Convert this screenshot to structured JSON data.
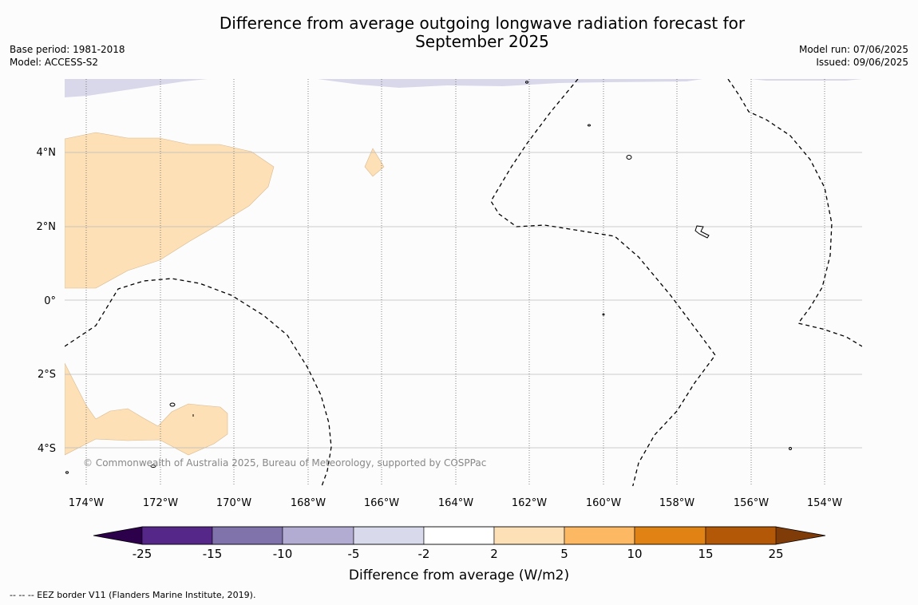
{
  "title_line1": "Difference from average outgoing longwave radiation forecast for",
  "title_line2": "September 2025",
  "meta_left": {
    "base_period": "Base period: 1981-2018",
    "model": "Model: ACCESS-S2"
  },
  "meta_right": {
    "model_run": "Model run: 07/06/2025",
    "issued": "Issued: 09/06/2025"
  },
  "copyright": "© Commonwealth of Australia 2025, Bureau of Meteorology, supported by COSPPac",
  "lat_labels": [
    "4°N",
    "2°N",
    "0°",
    "2°S",
    "4°S"
  ],
  "lon_labels": [
    "174°W",
    "172°W",
    "170°W",
    "168°W",
    "166°W",
    "164°W",
    "162°W",
    "160°W",
    "158°W",
    "156°W",
    "154°W"
  ],
  "colorbar": {
    "label": "Difference from average (W/m2)",
    "ticks": [
      "-25",
      "-15",
      "-10",
      "-5",
      "-2",
      "2",
      "5",
      "10",
      "15",
      "25"
    ],
    "colors": [
      "#2d004b",
      "#542788",
      "#8073ac",
      "#b2abd2",
      "#d8daeb",
      "#ffffff",
      "#fee0b6",
      "#fdb863",
      "#e08214",
      "#b35806",
      "#7f3b08"
    ]
  },
  "footer": "--  --  -- EEZ border V11 (Flanders Marine Institute, 2019).",
  "colors": {
    "positive_light": "#fde0b6",
    "negative_light": "#d8d8ea",
    "grid": "#bbbbbb"
  }
}
